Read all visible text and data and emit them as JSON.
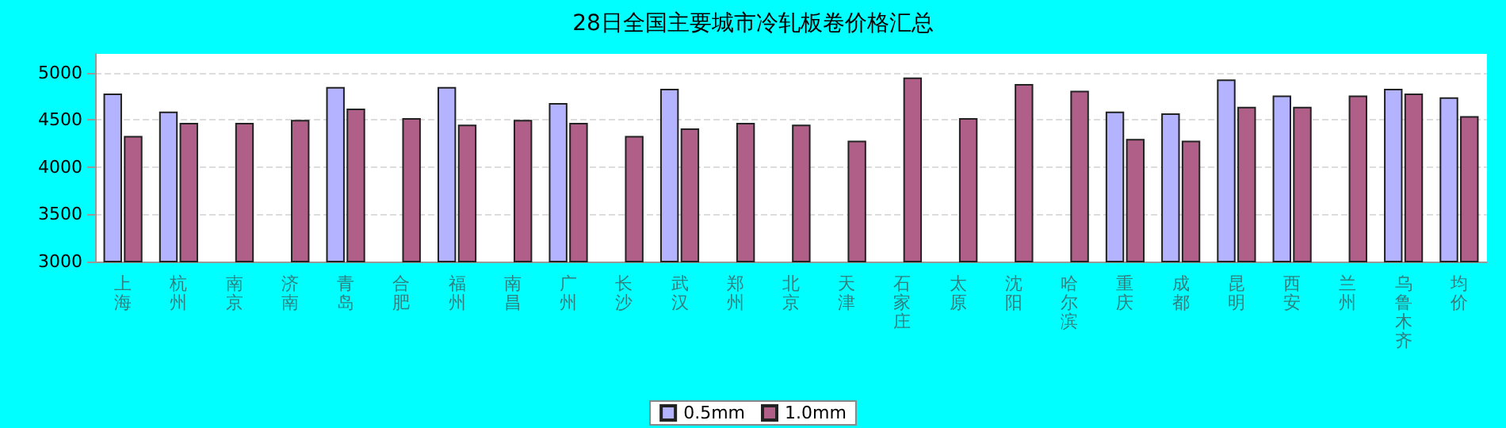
{
  "chart_data": {
    "type": "bar",
    "title": "28日全国主要城市冷轧板卷价格汇总",
    "categories": [
      "上海",
      "杭州",
      "南京",
      "济南",
      "青岛",
      "合肥",
      "福州",
      "南昌",
      "广州",
      "长沙",
      "武汉",
      "郑州",
      "北京",
      "天津",
      "石家庄",
      "太原",
      "沈阳",
      "哈尔滨",
      "重庆",
      "成都",
      "昆明",
      "西安",
      "兰州",
      "乌鲁木齐",
      "均价"
    ],
    "series": [
      {
        "name": "0.5mm",
        "color": "#b3b3ff",
        "values": [
          4780,
          4590,
          null,
          null,
          4850,
          null,
          4850,
          null,
          4680,
          null,
          4830,
          null,
          null,
          null,
          null,
          null,
          null,
          null,
          4590,
          4570,
          4930,
          4760,
          null,
          4830,
          4740
        ]
      },
      {
        "name": "1.0mm",
        "color": "#b06088",
        "values": [
          4330,
          4470,
          4470,
          4500,
          4620,
          4520,
          4450,
          4500,
          4470,
          4330,
          4410,
          4470,
          4450,
          4280,
          4950,
          4520,
          4880,
          4810,
          4300,
          4280,
          4640,
          4640,
          4760,
          4780,
          4540
        ]
      }
    ],
    "ylim": [
      3000,
      5200
    ],
    "yticks": [
      3000,
      3500,
      4000,
      4500,
      5000
    ],
    "grid": "y",
    "legend": "bottom"
  }
}
